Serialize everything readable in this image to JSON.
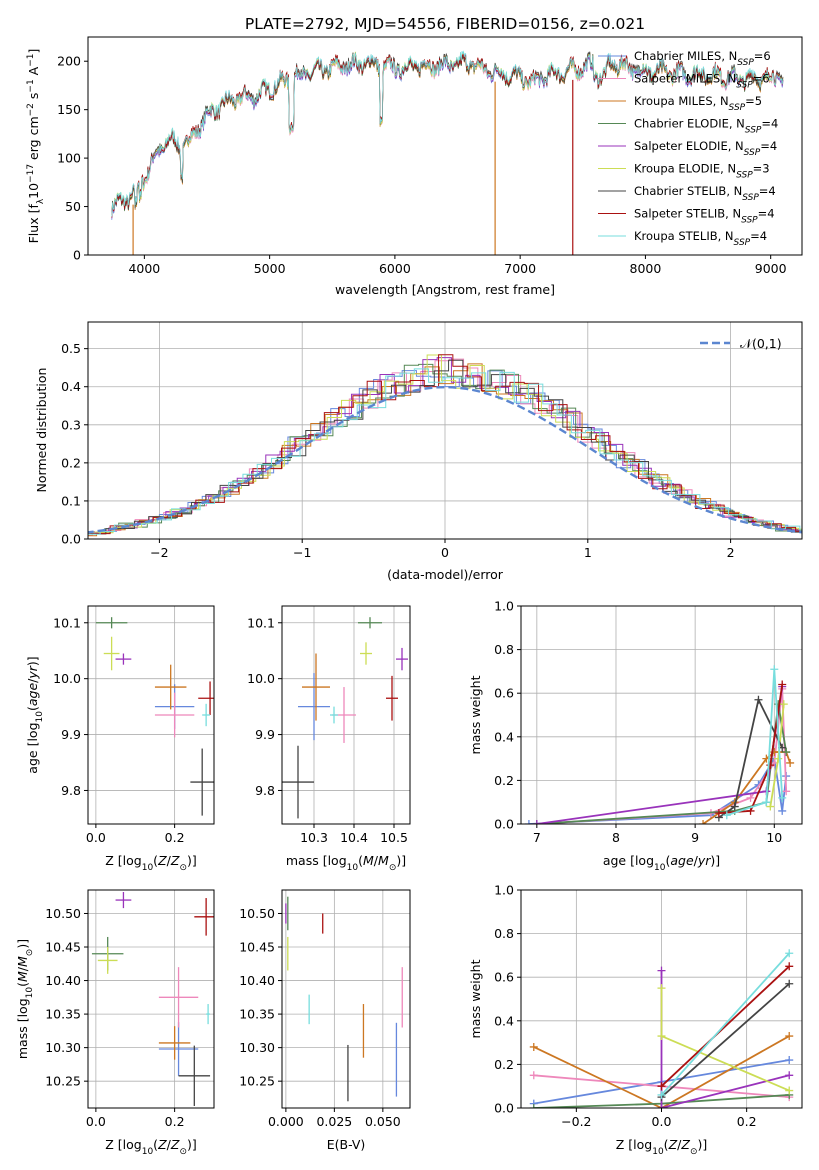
{
  "figure_title": "PLATE=2792, MJD=54556, FIBERID=0156, z=0.021",
  "colors": [
    "#6688dd",
    "#ee88bb",
    "#cc7722",
    "#558855",
    "#9933bb",
    "#ccdd55",
    "#444444",
    "#aa1111",
    "#77dddd"
  ],
  "chart_data": [
    {
      "id": "spectrum",
      "type": "line",
      "xlabel": "wavelength [Angstrom, rest frame]",
      "ylabel": "Flux [f_λ10^-17 erg cm^-2 s^-1 A^-1]",
      "xlim": [
        3550,
        9250
      ],
      "ylim": [
        0,
        225
      ],
      "xticks": [
        4000,
        5000,
        6000,
        7000,
        8000,
        9000
      ],
      "yticks": [
        0,
        50,
        100,
        150,
        200
      ],
      "grid": false,
      "legend_position": "right",
      "series": [
        {
          "name": "Chabrier MILES, N_SSP=6"
        },
        {
          "name": "Salpeter MILES, N_SSP=6"
        },
        {
          "name": "Kroupa MILES, N_SSP=5"
        },
        {
          "name": "Chabrier ELODIE, N_SSP=4"
        },
        {
          "name": "Salpeter ELODIE, N_SSP=4"
        },
        {
          "name": "Kroupa ELODIE, N_SSP=3"
        },
        {
          "name": "Chabrier STELIB, N_SSP=4"
        },
        {
          "name": "Salpeter STELIB, N_SSP=4"
        },
        {
          "name": "Kroupa STELIB, N_SSP=4"
        }
      ],
      "continuum": {
        "x": [
          3740,
          3900,
          4000,
          4100,
          4200,
          4300,
          4400,
          4500,
          4700,
          4900,
          5100,
          5200,
          5400,
          5600,
          5800,
          5900,
          6000,
          6200,
          6400,
          6600,
          6700,
          6900,
          7000,
          7100,
          7200,
          7400,
          7600,
          7800,
          8000,
          8200,
          8500,
          8800,
          9000,
          9100
        ],
        "y": [
          50,
          60,
          80,
          105,
          120,
          110,
          125,
          145,
          160,
          165,
          178,
          185,
          190,
          196,
          198,
          195,
          193,
          195,
          196,
          198,
          192,
          186,
          183,
          178,
          185,
          190,
          198,
          196,
          190,
          188,
          186,
          182,
          183,
          185
        ]
      },
      "spikes": [
        {
          "x": 3910,
          "y": 0
        },
        {
          "x": 6800,
          "y": 0
        },
        {
          "x": 7420,
          "y": 0
        }
      ]
    },
    {
      "id": "residuals",
      "type": "histogram",
      "xlabel": "(data-model)/error",
      "ylabel": "Normed distribution",
      "xlim": [
        -2.5,
        2.5
      ],
      "ylim": [
        0,
        0.57
      ],
      "xticks": [
        -2,
        -1,
        0,
        1,
        2
      ],
      "yticks": [
        0.0,
        0.1,
        0.2,
        0.3,
        0.4,
        0.5
      ],
      "grid": true,
      "bin_width": 0.1,
      "legend": [
        {
          "name": "𝒩(0,1)"
        }
      ],
      "legend_position": "top-right"
    },
    {
      "id": "age-vs-Z",
      "type": "errorbar",
      "xlabel": "Z [log10(Z/Z_sun)]",
      "ylabel": "age [log10(age/yr)]",
      "xlim": [
        -0.02,
        0.3
      ],
      "ylim": [
        9.74,
        10.13
      ],
      "xticks": [
        0.0,
        0.2
      ],
      "yticks": [
        9.8,
        9.9,
        10.0,
        10.1
      ],
      "grid": true,
      "points": [
        {
          "x": 0.2,
          "y": 9.95,
          "xerr": 0.05,
          "yerr": 0.04
        },
        {
          "x": 0.2,
          "y": 9.935,
          "xerr": 0.05,
          "yerr": 0.04
        },
        {
          "x": 0.19,
          "y": 9.985,
          "xerr": 0.04,
          "yerr": 0.04
        },
        {
          "x": 0.04,
          "y": 10.1,
          "xerr": 0.04,
          "yerr": 0.01
        },
        {
          "x": 0.07,
          "y": 10.035,
          "xerr": 0.02,
          "yerr": 0.01
        },
        {
          "x": 0.04,
          "y": 10.045,
          "xerr": 0.02,
          "yerr": 0.03
        },
        {
          "x": 0.27,
          "y": 9.815,
          "xerr": 0.03,
          "yerr": 0.06
        },
        {
          "x": 0.29,
          "y": 9.965,
          "xerr": 0.03,
          "yerr": 0.03
        },
        {
          "x": 0.28,
          "y": 9.935,
          "xerr": 0.01,
          "yerr": 0.02
        }
      ]
    },
    {
      "id": "age-vs-mass",
      "type": "errorbar",
      "xlabel": "mass [log10(M/M_sun)]",
      "ylabel": "",
      "xlim": [
        10.22,
        10.54
      ],
      "ylim": [
        9.74,
        10.13
      ],
      "xticks": [
        10.3,
        10.4,
        10.5
      ],
      "yticks": [
        9.8,
        9.9,
        10.0,
        10.1
      ],
      "grid": true,
      "points": [
        {
          "x": 10.3,
          "y": 9.95,
          "xerr": 0.04,
          "yerr": 0.06
        },
        {
          "x": 10.375,
          "y": 9.935,
          "xerr": 0.03,
          "yerr": 0.05
        },
        {
          "x": 10.305,
          "y": 9.985,
          "xerr": 0.035,
          "yerr": 0.06
        },
        {
          "x": 10.44,
          "y": 10.1,
          "xerr": 0.03,
          "yerr": 0.01
        },
        {
          "x": 10.52,
          "y": 10.035,
          "xerr": 0.015,
          "yerr": 0.02
        },
        {
          "x": 10.43,
          "y": 10.045,
          "xerr": 0.015,
          "yerr": 0.02
        },
        {
          "x": 10.26,
          "y": 9.815,
          "xerr": 0.04,
          "yerr": 0.065
        },
        {
          "x": 10.495,
          "y": 9.965,
          "xerr": 0.015,
          "yerr": 0.04
        },
        {
          "x": 10.35,
          "y": 9.935,
          "xerr": 0.01,
          "yerr": 0.015
        }
      ]
    },
    {
      "id": "weight-vs-age",
      "type": "line",
      "xlabel": "age [log10(age/yr)]",
      "ylabel": "mass weight",
      "xlim": [
        6.8,
        10.35
      ],
      "ylim": [
        0,
        1.0
      ],
      "xticks": [
        7,
        8,
        9,
        10
      ],
      "yticks": [
        0.0,
        0.2,
        0.4,
        0.6,
        0.8,
        1.0
      ],
      "grid": true,
      "series": [
        {
          "x": [
            6.9,
            9.2,
            9.8,
            10.0,
            10.1,
            10.15
          ],
          "y": [
            0.0,
            0.04,
            0.18,
            0.3,
            0.06,
            0.22
          ]
        },
        {
          "x": [
            7.0,
            9.2,
            9.7,
            10.0,
            10.1,
            10.15
          ],
          "y": [
            0.0,
            0.05,
            0.12,
            0.28,
            0.62,
            0.15
          ]
        },
        {
          "x": [
            9.1,
            9.5,
            9.9,
            10.0,
            10.15,
            10.2
          ],
          "y": [
            0.0,
            0.1,
            0.3,
            0.33,
            0.33,
            0.28
          ]
        },
        {
          "x": [
            7.0,
            9.5,
            9.9,
            10.05,
            10.15
          ],
          "y": [
            0.0,
            0.06,
            0.1,
            0.55,
            0.33
          ]
        },
        {
          "x": [
            7.0,
            9.9,
            10.1
          ],
          "y": [
            0.0,
            0.15,
            0.63
          ]
        },
        {
          "x": [
            9.95,
            10.05,
            10.12
          ],
          "y": [
            0.08,
            0.3,
            0.55
          ]
        },
        {
          "x": [
            9.3,
            9.5,
            9.8,
            10.1
          ],
          "y": [
            0.03,
            0.08,
            0.57,
            0.35
          ]
        },
        {
          "x": [
            9.3,
            9.7,
            9.95,
            10.1
          ],
          "y": [
            0.05,
            0.06,
            0.27,
            0.64
          ]
        },
        {
          "x": [
            9.4,
            9.9,
            10.0,
            10.1
          ],
          "y": [
            0.04,
            0.1,
            0.71,
            0.12
          ]
        }
      ]
    },
    {
      "id": "mass-vs-Z",
      "type": "errorbar",
      "xlabel": "Z [log10(Z/Z_sun)]",
      "ylabel": "mass [log10(M/M_sun)]",
      "xlim": [
        -0.02,
        0.3
      ],
      "ylim": [
        10.21,
        10.535
      ],
      "xticks": [
        0.0,
        0.2
      ],
      "yticks": [
        10.25,
        10.3,
        10.35,
        10.4,
        10.45,
        10.5
      ],
      "grid": true,
      "points": [
        {
          "x": 0.21,
          "y": 10.298,
          "xerr": 0.05,
          "yerr": 0.04
        },
        {
          "x": 0.21,
          "y": 10.375,
          "xerr": 0.05,
          "yerr": 0.045
        },
        {
          "x": 0.2,
          "y": 10.307,
          "xerr": 0.04,
          "yerr": 0.025
        },
        {
          "x": 0.03,
          "y": 10.44,
          "xerr": 0.04,
          "yerr": 0.025
        },
        {
          "x": 0.07,
          "y": 10.52,
          "xerr": 0.02,
          "yerr": 0.012
        },
        {
          "x": 0.03,
          "y": 10.43,
          "xerr": 0.025,
          "yerr": 0.02
        },
        {
          "x": 0.25,
          "y": 10.258,
          "xerr": 0.04,
          "yerr": 0.045
        },
        {
          "x": 0.28,
          "y": 10.495,
          "xerr": 0.03,
          "yerr": 0.028
        },
        {
          "x": 0.285,
          "y": 10.35,
          "xerr": 0.005,
          "yerr": 0.015
        }
      ]
    },
    {
      "id": "mass-vs-ebv",
      "type": "errorbar",
      "xlabel": "E(B-V)",
      "ylabel": "",
      "xlim": [
        -0.002,
        0.064
      ],
      "ylim": [
        10.21,
        10.535
      ],
      "xticks": [
        0.0,
        0.025,
        0.05
      ],
      "yticks": [
        10.25,
        10.3,
        10.35,
        10.4,
        10.45,
        10.5
      ],
      "grid": true,
      "points": [
        {
          "x": 0.057,
          "y": 10.282,
          "xerr": 0.0,
          "yerr": 0.055
        },
        {
          "x": 0.06,
          "y": 10.375,
          "xerr": 0.0,
          "yerr": 0.045
        },
        {
          "x": 0.04,
          "y": 10.325,
          "xerr": 0.0,
          "yerr": 0.04
        },
        {
          "x": 0.001,
          "y": 10.5,
          "xerr": 0.0,
          "yerr": 0.025
        },
        {
          "x": 0.0,
          "y": 10.5,
          "xerr": 0.0,
          "yerr": 0.015
        },
        {
          "x": 0.001,
          "y": 10.44,
          "xerr": 0.0,
          "yerr": 0.025
        },
        {
          "x": 0.032,
          "y": 10.262,
          "xerr": 0.0,
          "yerr": 0.042
        },
        {
          "x": 0.019,
          "y": 10.485,
          "xerr": 0.0,
          "yerr": 0.015
        },
        {
          "x": 0.012,
          "y": 10.357,
          "xerr": 0.0,
          "yerr": 0.022
        }
      ]
    },
    {
      "id": "weight-vs-Z",
      "type": "line",
      "xlabel": "Z [log10(Z/Z_sun)]",
      "ylabel": "mass weight",
      "xlim": [
        -0.33,
        0.33
      ],
      "ylim": [
        0,
        1.0
      ],
      "xticks": [
        -0.2,
        0.0,
        0.2
      ],
      "yticks": [
        0.0,
        0.2,
        0.4,
        0.6,
        0.8,
        1.0
      ],
      "grid": true,
      "series": [
        {
          "x": [
            -0.3,
            0.0,
            0.3
          ],
          "y": [
            0.02,
            0.12,
            0.22
          ]
        },
        {
          "x": [
            -0.3,
            0.0,
            0.3
          ],
          "y": [
            0.15,
            0.1,
            0.05
          ]
        },
        {
          "x": [
            -0.3,
            0.0,
            0.3
          ],
          "y": [
            0.28,
            0.0,
            0.33
          ]
        },
        {
          "x": [
            -0.3,
            0.0,
            0.3
          ],
          "y": [
            0.0,
            0.02,
            0.06
          ]
        },
        {
          "x": [
            0.0,
            0.0,
            0.3
          ],
          "y": [
            0.63,
            0.0,
            0.15
          ]
        },
        {
          "x": [
            0.0,
            0.0,
            0.3
          ],
          "y": [
            0.55,
            0.33,
            0.08
          ]
        },
        {
          "x": [
            0.0,
            0.3
          ],
          "y": [
            0.05,
            0.57
          ]
        },
        {
          "x": [
            0.0,
            0.3
          ],
          "y": [
            0.1,
            0.65
          ]
        },
        {
          "x": [
            0.0,
            0.3
          ],
          "y": [
            0.06,
            0.71
          ]
        }
      ]
    }
  ]
}
